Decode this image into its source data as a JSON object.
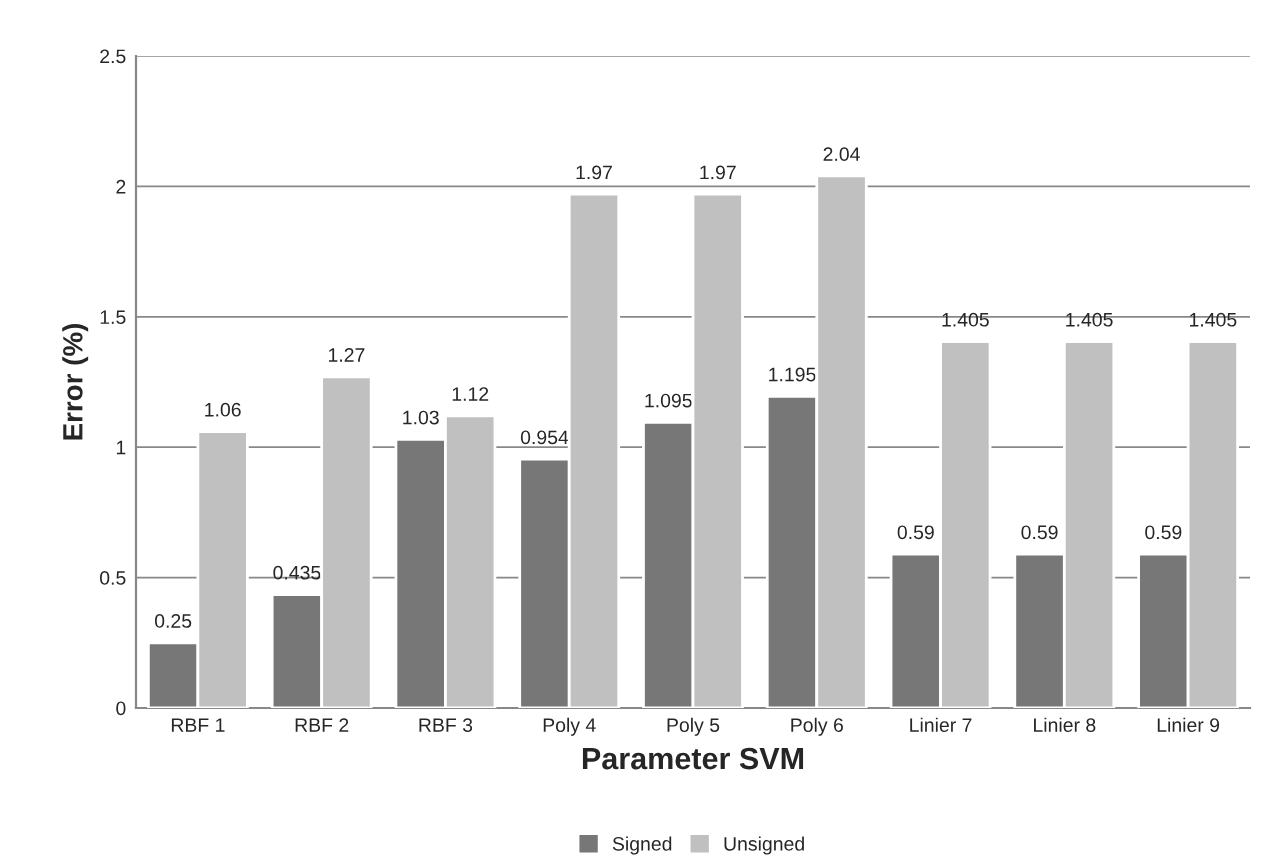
{
  "chart_data": {
    "type": "bar",
    "xlabel": "Parameter SVM",
    "ylabel": "Error (%)",
    "categories": [
      "RBF 1",
      "RBF 2",
      "RBF 3",
      "Poly 4",
      "Poly 5",
      "Poly 6",
      "Linier 7",
      "Linier 8",
      "Linier 9"
    ],
    "series": [
      {
        "name": "Signed",
        "color": "#777777",
        "values": [
          0.25,
          0.435,
          1.03,
          0.954,
          1.095,
          1.195,
          0.59,
          0.59,
          0.59
        ]
      },
      {
        "name": "Unsigned",
        "color": "#c0c0c0",
        "values": [
          1.06,
          1.27,
          1.12,
          1.97,
          1.97,
          2.04,
          1.405,
          1.405,
          1.405
        ]
      }
    ],
    "ylim": [
      0,
      2.5
    ],
    "yticks": [
      0,
      0.5,
      1,
      1.5,
      2,
      2.5
    ],
    "grid": "y",
    "legend": "bottom",
    "data_labels": true
  }
}
